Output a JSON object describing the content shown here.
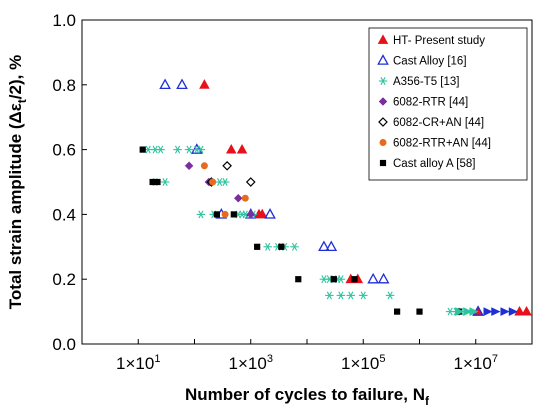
{
  "chart_data": {
    "type": "scatter",
    "title": "",
    "xlabel": "Number of cycles to failure, N",
    "xlabel_sub": "f",
    "ylabel": "Total strain amplitude (Δε",
    "ylabel_sub": "t",
    "ylabel_tail": "/2), %",
    "x_scale": "log",
    "xlim": [
      1,
      100000000
    ],
    "ylim": [
      0,
      1.0
    ],
    "x_ticks": [
      {
        "value": 10,
        "base": "1×10",
        "exp": "1"
      },
      {
        "value": 1000,
        "base": "1×10",
        "exp": "3"
      },
      {
        "value": 100000,
        "base": "1×10",
        "exp": "5"
      },
      {
        "value": 10000000,
        "base": "1×10",
        "exp": "7"
      }
    ],
    "y_ticks": [
      "0.0",
      "0.2",
      "0.4",
      "0.6",
      "0.8",
      "1.0"
    ],
    "y_tick_values": [
      0,
      0.2,
      0.4,
      0.6,
      0.8,
      1.0
    ],
    "grid": false,
    "legend_position": "top-right",
    "series": [
      {
        "name": "HT- Present study",
        "marker": "triangle",
        "color": "#e8101a",
        "points": [
          [
            150,
            0.8
          ],
          [
            450,
            0.6
          ],
          [
            700,
            0.6
          ],
          [
            1400,
            0.4
          ],
          [
            1600,
            0.4
          ],
          [
            60000,
            0.2
          ],
          [
            80000,
            0.2
          ],
          [
            11000000,
            0.1
          ],
          [
            60000000,
            0.1
          ],
          [
            80000000,
            0.1
          ]
        ]
      },
      {
        "name": "Cast Alloy [16]",
        "marker": "triangle-open",
        "color": "#1f2fd6",
        "points": [
          [
            30,
            0.8
          ],
          [
            60,
            0.8
          ],
          [
            110,
            0.6
          ],
          [
            300,
            0.4
          ],
          [
            1000,
            0.4
          ],
          [
            2200,
            0.4
          ],
          [
            20000,
            0.3
          ],
          [
            27000,
            0.3
          ],
          [
            150000,
            0.2
          ],
          [
            230000,
            0.2
          ],
          [
            11000000,
            0.1
          ]
        ]
      },
      {
        "name": "A356-T5 [13]",
        "marker": "asterisk",
        "color": "#2ec4a0",
        "points": [
          [
            15,
            0.6
          ],
          [
            20,
            0.6
          ],
          [
            25,
            0.6
          ],
          [
            50,
            0.6
          ],
          [
            80,
            0.6
          ],
          [
            110,
            0.6
          ],
          [
            130,
            0.6
          ],
          [
            20,
            0.5
          ],
          [
            30,
            0.5
          ],
          [
            130,
            0.4
          ],
          [
            220,
            0.4
          ],
          [
            280,
            0.5
          ],
          [
            350,
            0.5
          ],
          [
            600,
            0.4
          ],
          [
            700,
            0.4
          ],
          [
            800,
            0.4
          ],
          [
            1100,
            0.4
          ],
          [
            2000,
            0.3
          ],
          [
            3000,
            0.3
          ],
          [
            4000,
            0.3
          ],
          [
            6000,
            0.3
          ],
          [
            20000,
            0.2
          ],
          [
            25000,
            0.2
          ],
          [
            30000,
            0.2
          ],
          [
            35000,
            0.2
          ],
          [
            40000,
            0.2
          ],
          [
            25000,
            0.15
          ],
          [
            40000,
            0.15
          ],
          [
            60000,
            0.15
          ],
          [
            100000,
            0.15
          ],
          [
            300000,
            0.15
          ],
          [
            3500000,
            0.1
          ],
          [
            4500000,
            0.1
          ],
          [
            5500000,
            0.1
          ]
        ]
      },
      {
        "name": "6082-RTR [44]",
        "marker": "diamond",
        "color": "#7a2fa0",
        "points": [
          [
            80,
            0.55
          ],
          [
            180,
            0.5
          ],
          [
            600,
            0.45
          ],
          [
            1000,
            0.4
          ]
        ]
      },
      {
        "name": "6082-CR+AN [44]",
        "marker": "diamond-open",
        "color": "#000000",
        "points": [
          [
            200,
            0.5
          ],
          [
            380,
            0.55
          ],
          [
            1000,
            0.5
          ]
        ]
      },
      {
        "name": "6082-RTR+AN [44]",
        "marker": "circle",
        "color": "#e86a1a",
        "points": [
          [
            150,
            0.55
          ],
          [
            210,
            0.5
          ],
          [
            350,
            0.4
          ],
          [
            800,
            0.45
          ]
        ]
      },
      {
        "name": "Cast alloy A [58]",
        "marker": "square",
        "color": "#000000",
        "points": [
          [
            12,
            0.6
          ],
          [
            18,
            0.5
          ],
          [
            22,
            0.5
          ],
          [
            250,
            0.4
          ],
          [
            500,
            0.4
          ],
          [
            1300,
            0.3
          ],
          [
            3500,
            0.3
          ],
          [
            7000,
            0.2
          ],
          [
            30000,
            0.2
          ],
          [
            70000,
            0.2
          ],
          [
            400000,
            0.1
          ],
          [
            1000000,
            0.1
          ],
          [
            5000000,
            0.1
          ]
        ]
      },
      {
        "name": "",
        "marker": "triangle-right",
        "color": "#2ec4a0",
        "points": [
          [
            5000000,
            0.1
          ],
          [
            7000000,
            0.1
          ],
          [
            9000000,
            0.1
          ]
        ]
      },
      {
        "name": "",
        "marker": "triangle-right",
        "color": "#1f2fd6",
        "points": [
          [
            16000000,
            0.1
          ],
          [
            22000000,
            0.1
          ],
          [
            32000000,
            0.1
          ],
          [
            45000000,
            0.1
          ]
        ]
      }
    ],
    "legend": [
      {
        "label": "HT- Present study",
        "marker": "triangle",
        "color": "#e8101a"
      },
      {
        "label": "Cast Alloy [16]",
        "marker": "triangle-open",
        "color": "#1f2fd6"
      },
      {
        "label": "A356-T5 [13]",
        "marker": "asterisk",
        "color": "#2ec4a0"
      },
      {
        "label": "6082-RTR [44]",
        "marker": "diamond",
        "color": "#7a2fa0"
      },
      {
        "label": "6082-CR+AN [44]",
        "marker": "diamond-open",
        "color": "#000000"
      },
      {
        "label": "6082-RTR+AN [44]",
        "marker": "circle",
        "color": "#e86a1a"
      },
      {
        "label": "Cast alloy A [58]",
        "marker": "square",
        "color": "#000000"
      }
    ]
  }
}
